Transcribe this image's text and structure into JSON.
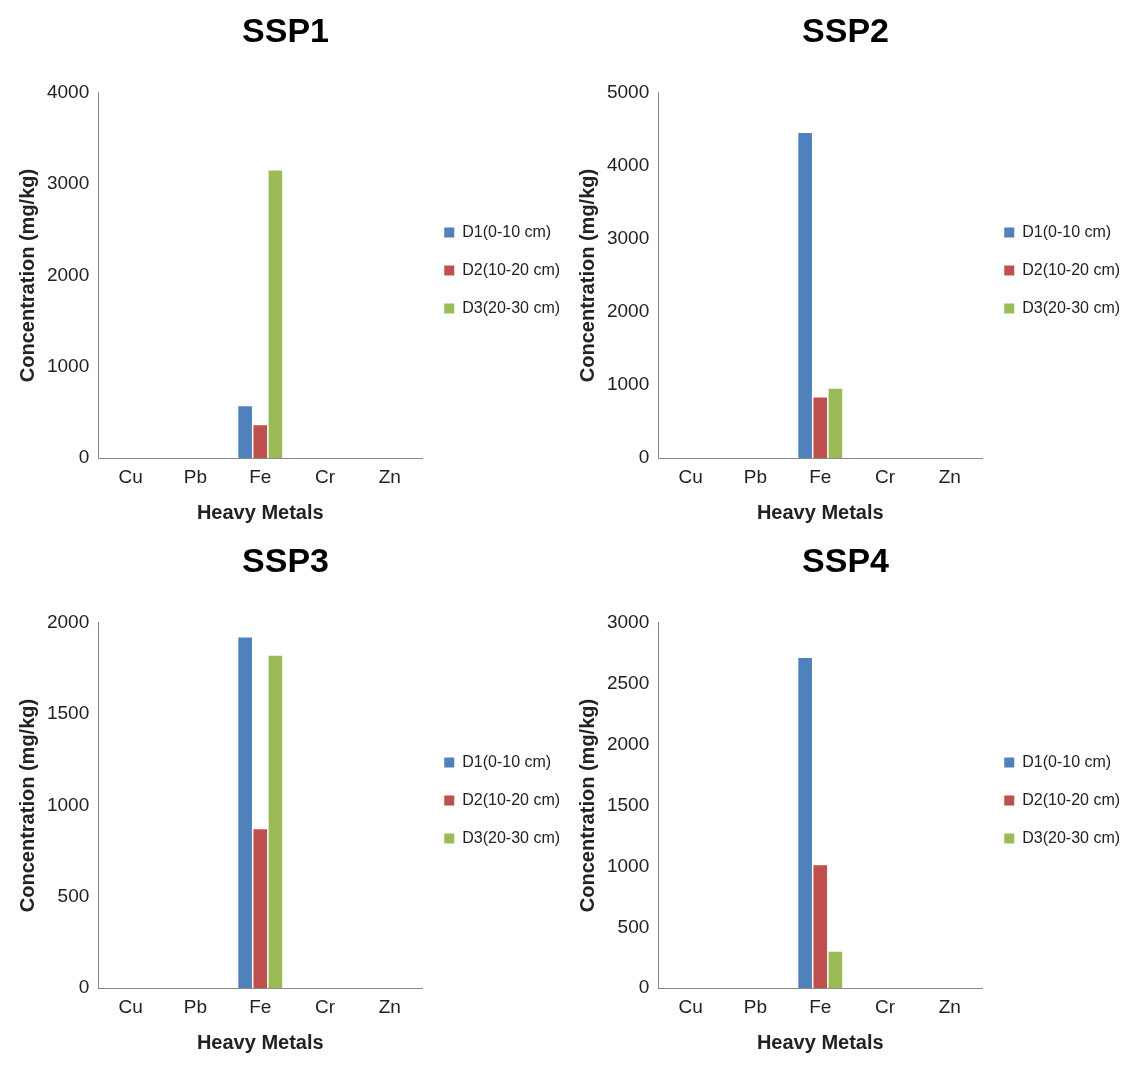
{
  "chart_data": [
    {
      "type": "bar",
      "title": "SSP1",
      "xlabel": "Heavy Metals",
      "ylabel": "Concentration (mg/kg)",
      "categories": [
        "Cu",
        "Pb",
        "Fe",
        "Cr",
        "Zn"
      ],
      "ylim": [
        0,
        4000
      ],
      "yticks": [
        0,
        1000,
        2000,
        3000,
        4000
      ],
      "legend": "right",
      "series": [
        {
          "name": "D1(0-10 cm)",
          "color": "#4f81bd",
          "values": [
            0,
            0,
            570,
            0,
            0
          ]
        },
        {
          "name": "D2(10-20 cm)",
          "color": "#c0504d",
          "values": [
            0,
            0,
            360,
            0,
            0
          ]
        },
        {
          "name": "D3(20-30 cm)",
          "color": "#9bbb59",
          "values": [
            0,
            0,
            3150,
            0,
            0
          ]
        }
      ]
    },
    {
      "type": "bar",
      "title": "SSP2",
      "xlabel": "Heavy Metals",
      "ylabel": "Concentration (mg/kg)",
      "categories": [
        "Cu",
        "Pb",
        "Fe",
        "Cr",
        "Zn"
      ],
      "ylim": [
        0,
        5000
      ],
      "yticks": [
        0,
        1000,
        2000,
        3000,
        4000,
        5000
      ],
      "legend": "right",
      "series": [
        {
          "name": "D1(0-10 cm)",
          "color": "#4f81bd",
          "values": [
            0,
            0,
            4450,
            0,
            0
          ]
        },
        {
          "name": "D2(10-20 cm)",
          "color": "#c0504d",
          "values": [
            0,
            0,
            830,
            0,
            0
          ]
        },
        {
          "name": "D3(20-30 cm)",
          "color": "#9bbb59",
          "values": [
            0,
            0,
            950,
            0,
            0
          ]
        }
      ]
    },
    {
      "type": "bar",
      "title": "SSP3",
      "xlabel": "Heavy Metals",
      "ylabel": "Concentration (mg/kg)",
      "categories": [
        "Cu",
        "Pb",
        "Fe",
        "Cr",
        "Zn"
      ],
      "ylim": [
        0,
        2000
      ],
      "yticks": [
        0,
        500,
        1000,
        1500,
        2000
      ],
      "legend": "right",
      "series": [
        {
          "name": "D1(0-10 cm)",
          "color": "#4f81bd",
          "values": [
            0,
            0,
            1920,
            0,
            0
          ]
        },
        {
          "name": "D2(10-20 cm)",
          "color": "#c0504d",
          "values": [
            0,
            0,
            870,
            0,
            0
          ]
        },
        {
          "name": "D3(20-30 cm)",
          "color": "#9bbb59",
          "values": [
            0,
            0,
            1820,
            0,
            0
          ]
        }
      ]
    },
    {
      "type": "bar",
      "title": "SSP4",
      "xlabel": "Heavy Metals",
      "ylabel": "Concentration (mg/kg)",
      "categories": [
        "Cu",
        "Pb",
        "Fe",
        "Cr",
        "Zn"
      ],
      "ylim": [
        0,
        3000
      ],
      "yticks": [
        0,
        500,
        1000,
        1500,
        2000,
        2500,
        3000
      ],
      "legend": "right",
      "series": [
        {
          "name": "D1(0-10 cm)",
          "color": "#4f81bd",
          "values": [
            0,
            0,
            2710,
            0,
            0
          ]
        },
        {
          "name": "D2(10-20 cm)",
          "color": "#c0504d",
          "values": [
            0,
            0,
            1010,
            0,
            0
          ]
        },
        {
          "name": "D3(20-30 cm)",
          "color": "#9bbb59",
          "values": [
            0,
            0,
            300,
            0,
            0
          ]
        }
      ]
    }
  ]
}
